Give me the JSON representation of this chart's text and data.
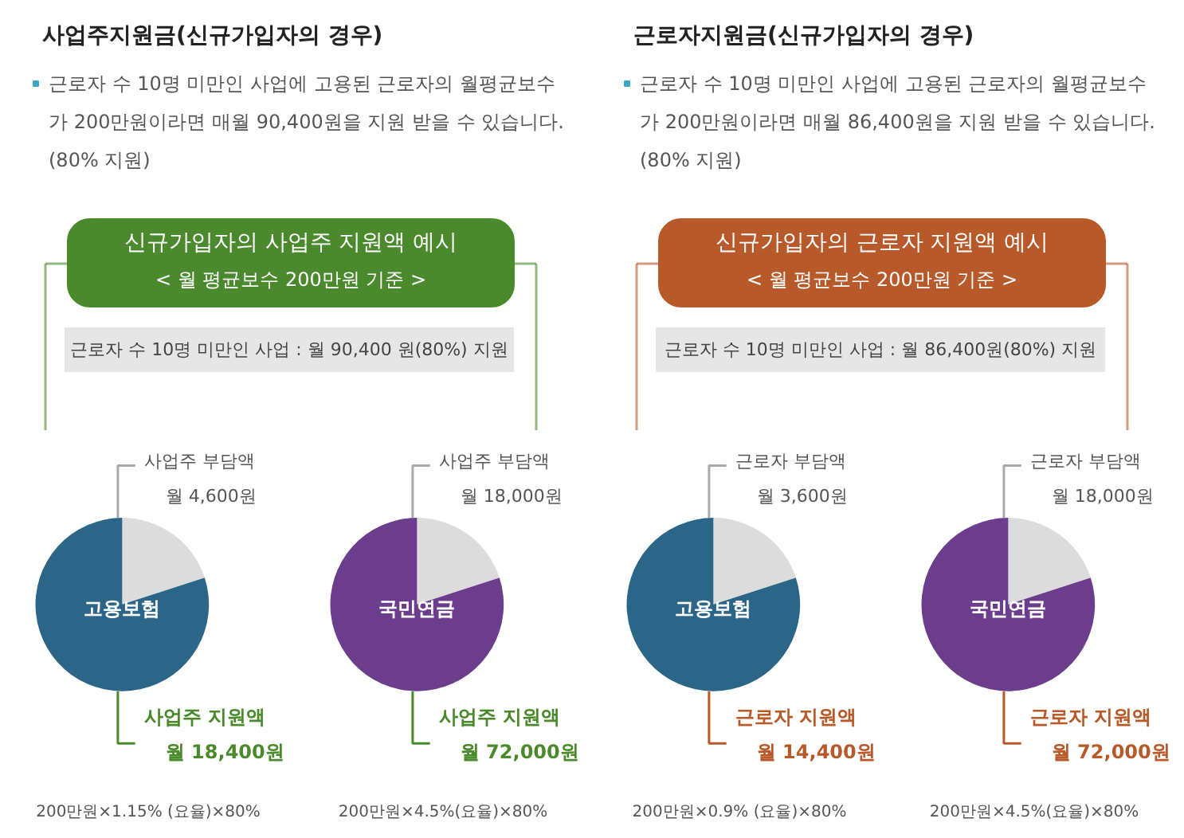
{
  "chart_data": [
    {
      "type": "other",
      "title": "사업주지원금(신규가입자의 경우)",
      "annotations": [
        "근로자 수 10명 미만인 사업에 고용된 근로자의 월평균보수",
        "가 200만원이라면 매월 90,400원을 지원 받을 수 있습니다.",
        "(80% 지원)",
        "신규가입자의 사업주 지원액 예시",
        "< 월 평균보수 200만원 기준 >",
        "근로자 수 10명 미만인 사업 : 월 90,400 원(80%) 지원"
      ]
    },
    {
      "type": "pie",
      "title": "고용보험",
      "categories": [
        "사업주 부담액",
        "사업주 지원액"
      ],
      "values": [
        4600,
        18400
      ],
      "value_labels": [
        "월 4,600원",
        "월 18,400원"
      ],
      "colors": [
        "#dcdcdc",
        "#2b6688"
      ],
      "annotations": [
        "200만원×1.15% (요율)×80%"
      ]
    },
    {
      "type": "pie",
      "title": "국민연금",
      "categories": [
        "사업주 부담액",
        "사업주 지원액"
      ],
      "values": [
        18000,
        72000
      ],
      "value_labels": [
        "월 18,000원",
        "월 72,000원"
      ],
      "colors": [
        "#dcdcdc",
        "#6c3d8d"
      ],
      "annotations": [
        "200만원×4.5%(요율)×80%"
      ]
    },
    {
      "type": "other",
      "title": "근로자지원금(신규가입자의 경우)",
      "annotations": [
        "근로자 수 10명 미만인 사업에 고용된 근로자의 월평균보수",
        "가 200만원이라면 매월 86,400원을 지원 받을 수 있습니다.",
        "(80% 지원)",
        "신규가입자의 근로자 지원액 예시",
        "< 월 평균보수 200만원 기준 >",
        "근로자 수 10명 미만인 사업 : 월 86,400원(80%) 지원"
      ]
    },
    {
      "type": "pie",
      "title": "고용보험",
      "categories": [
        "근로자 부담액",
        "근로자 지원액"
      ],
      "values": [
        3600,
        14400
      ],
      "value_labels": [
        "월 3,600원",
        "월 14,400원"
      ],
      "colors": [
        "#dcdcdc",
        "#2b6688"
      ],
      "annotations": [
        "200만원×0.9% (요율)×80%"
      ]
    },
    {
      "type": "pie",
      "title": "국민연금",
      "categories": [
        "근로자 부담액",
        "근로자 지원액"
      ],
      "values": [
        18000,
        72000
      ],
      "value_labels": [
        "월 18,000원",
        "월 72,000원"
      ],
      "colors": [
        "#dcdcdc",
        "#6c3d8d"
      ],
      "annotations": [
        "200만원×4.5%(요율)×80%"
      ]
    }
  ]
}
